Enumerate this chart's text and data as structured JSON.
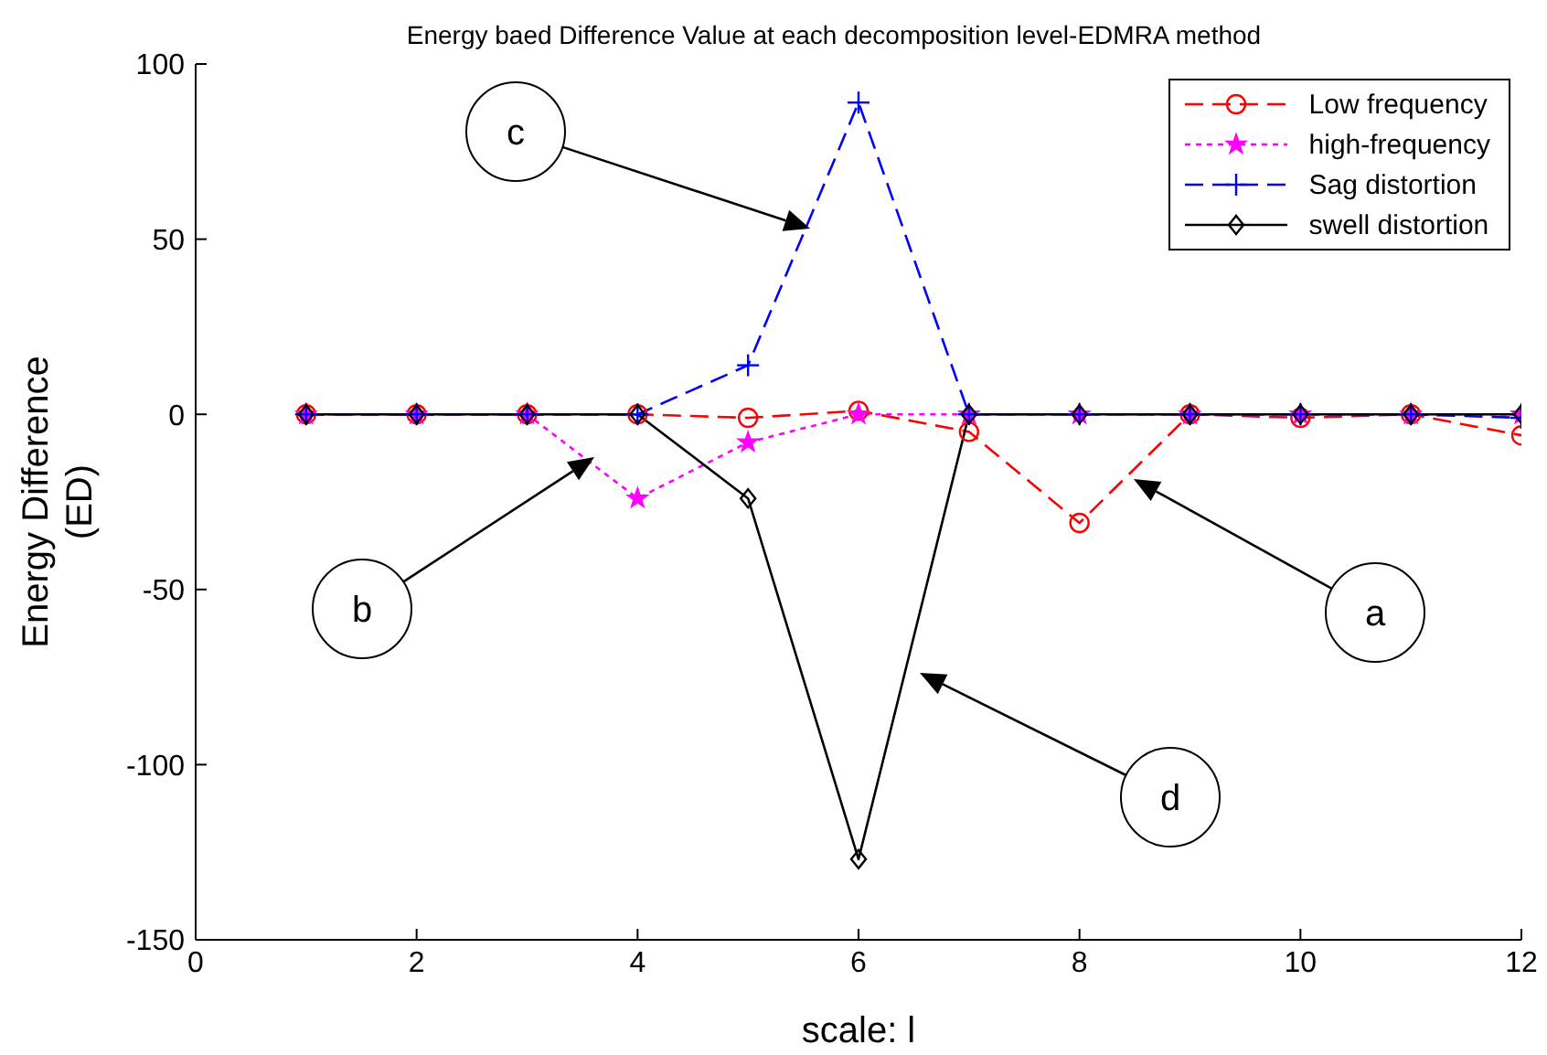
{
  "chart_data": {
    "type": "line",
    "title": "Energy baed Difference Value at each decomposition level-EDMRA method",
    "xlabel": "scale: l",
    "ylabel": "Energy Difference\n(ED)",
    "x": [
      1,
      2,
      3,
      4,
      5,
      6,
      7,
      8,
      9,
      10,
      11,
      12
    ],
    "series": [
      {
        "name": "Low frequency",
        "color": "#ff0000",
        "marker": "circle",
        "line_style": "dashed",
        "values": [
          0,
          0,
          0,
          0,
          -1,
          1,
          -5,
          -31,
          0,
          -1,
          0,
          -6
        ]
      },
      {
        "name": "high-frequency",
        "color": "#ff00ff",
        "marker": "star",
        "line_style": "dotted",
        "values": [
          0,
          0,
          0,
          -24,
          -8,
          0,
          0,
          0,
          0,
          0,
          0,
          0
        ]
      },
      {
        "name": "Sag distortion",
        "color": "#0000ff",
        "marker": "cross",
        "line_style": "dashed",
        "values": [
          0,
          0,
          0,
          0,
          14,
          89,
          0,
          0,
          0,
          0,
          0,
          -1
        ]
      },
      {
        "name": "swell distortion",
        "color": "#000000",
        "marker": "diamond",
        "line_style": "solid",
        "values": [
          0,
          0,
          0,
          0,
          -24,
          -127,
          0,
          0,
          0,
          0,
          0,
          0
        ]
      }
    ],
    "xlim": [
      0,
      12
    ],
    "xticks": [
      0,
      2,
      4,
      6,
      8,
      10,
      12
    ],
    "ylim": [
      -150,
      100
    ],
    "yticks": [
      -150,
      -100,
      -50,
      0,
      50,
      100
    ],
    "grid": false,
    "legend": "top right",
    "annotations": [
      "a",
      "b",
      "c",
      "d"
    ]
  }
}
